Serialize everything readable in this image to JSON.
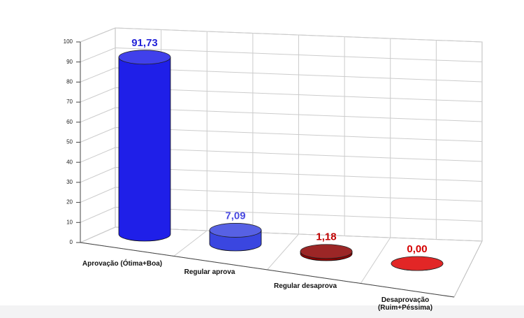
{
  "chart_data": {
    "type": "bar3d",
    "categories": [
      "Aprovação (Ótima+Boa)",
      "Regular aprova",
      "Regular desaprova",
      "Desaprovação\n(Ruim+Péssima)"
    ],
    "values": [
      91.73,
      7.09,
      1.18,
      0.0
    ],
    "value_labels": [
      "91,73",
      "7,09",
      "1,18",
      "0,00"
    ],
    "colors": [
      "#1f1fe8",
      "#3a46e0",
      "#8b0000",
      "#dd0000"
    ],
    "label_colors": [
      "#2323d8",
      "#4a4ae0",
      "#c00000",
      "#d40000"
    ],
    "ylim": [
      0,
      100
    ],
    "yticks": [
      0,
      10,
      20,
      30,
      40,
      50,
      60,
      70,
      80,
      90,
      100
    ],
    "grid": true
  }
}
